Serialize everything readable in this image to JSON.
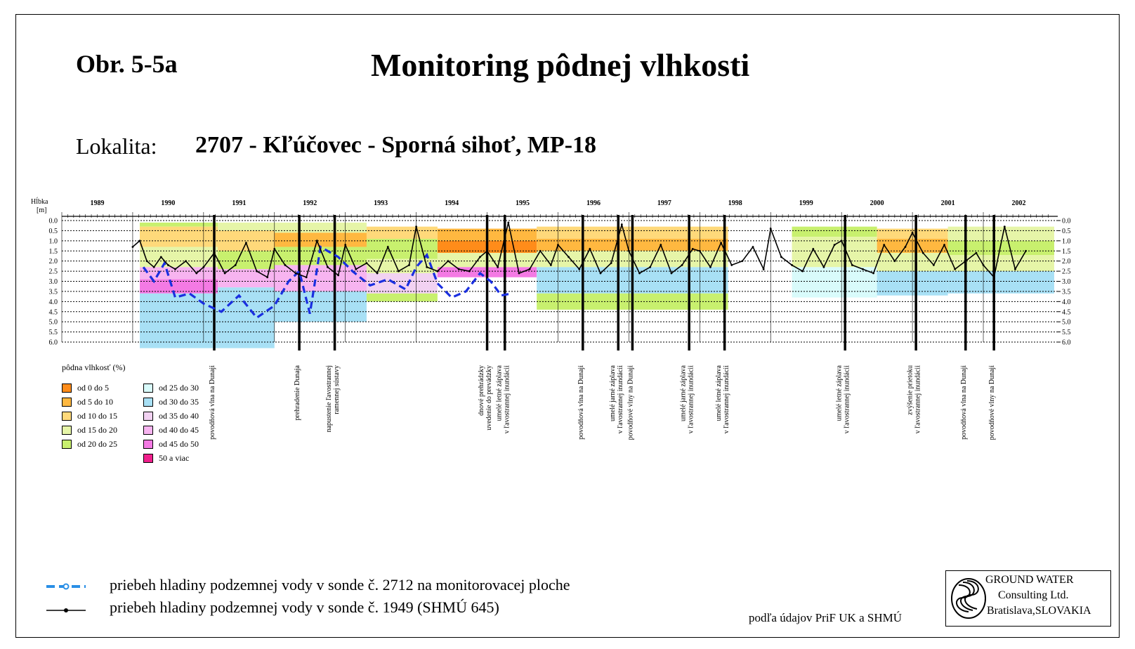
{
  "header": {
    "figure_label": "Obr. 5-5a",
    "title": "Monitoring pôdnej vlhkosti",
    "location_label": "Lokalita:",
    "location_value": "2707 - Kľúčovec - Sporná sihoť, MP-18"
  },
  "chart_data": {
    "type": "line",
    "ylabel": "Hĺbka [m]",
    "years": [
      "1989",
      "1990",
      "1991",
      "1992",
      "1993",
      "1994",
      "1995",
      "1996",
      "1997",
      "1998",
      "1999",
      "2000",
      "2001",
      "2002"
    ],
    "x_range": [
      1989.0,
      2003.05
    ],
    "depth_ticks": [
      "0.0",
      "0.5",
      "1.0",
      "1.5",
      "2.0",
      "2.5",
      "3.0",
      "3.5",
      "4.0",
      "4.5",
      "5.0",
      "5.5",
      "6.0"
    ],
    "ylim": [
      0,
      6
    ],
    "y_inverted": true,
    "grid": "dotted-horizontal",
    "colors": {
      "sonda_2712": "#1a2fe0",
      "sonda_1949": "#000000",
      "events": "#000000"
    },
    "series": [
      {
        "name": "priebeh hladiny podzemnej vody v sonde č. 2712 na monitorovacej ploche",
        "style": "dashed",
        "x": [
          1990.15,
          1990.3,
          1990.45,
          1990.6,
          1990.8,
          1991.0,
          1991.25,
          1991.5,
          1991.75,
          1992.0,
          1992.2,
          1992.35,
          1992.5,
          1992.65,
          1992.9,
          1993.1,
          1993.35,
          1993.6,
          1993.85,
          1994.0,
          1994.15,
          1994.3,
          1994.5,
          1994.7,
          1994.9,
          1995.05,
          1995.2,
          1995.35
        ],
        "y": [
          2.3,
          3.0,
          2.1,
          3.8,
          3.6,
          4.1,
          4.5,
          3.7,
          4.8,
          4.2,
          3.0,
          2.5,
          4.6,
          1.3,
          1.8,
          2.5,
          3.2,
          2.9,
          3.4,
          2.3,
          1.7,
          3.1,
          3.8,
          3.5,
          2.6,
          3.0,
          3.7,
          3.6
        ]
      },
      {
        "name": "priebeh hladiny podzemnej vody v sonde č. 1949 (SHMÚ 645)",
        "style": "solid",
        "x": [
          1990.0,
          1990.1,
          1990.2,
          1990.3,
          1990.4,
          1990.5,
          1990.6,
          1990.75,
          1990.9,
          1991.0,
          1991.15,
          1991.3,
          1991.45,
          1991.6,
          1991.75,
          1991.9,
          1992.0,
          1992.15,
          1992.3,
          1992.45,
          1992.6,
          1992.75,
          1992.9,
          1993.0,
          1993.15,
          1993.3,
          1993.45,
          1993.6,
          1993.75,
          1993.9,
          1994.0,
          1994.15,
          1994.3,
          1994.45,
          1994.6,
          1994.75,
          1994.9,
          1995.0,
          1995.15,
          1995.3,
          1995.45,
          1995.6,
          1995.75,
          1995.9,
          1996.0,
          1996.15,
          1996.3,
          1996.45,
          1996.6,
          1996.75,
          1996.9,
          1997.0,
          1997.15,
          1997.3,
          1997.45,
          1997.6,
          1997.75,
          1997.9,
          1998.0,
          1998.15,
          1998.3,
          1998.45,
          1998.6,
          1998.75,
          1998.9,
          1999.0,
          1999.15,
          1999.3,
          1999.45,
          1999.6,
          1999.75,
          1999.9,
          2000.0,
          2000.15,
          2000.3,
          2000.45,
          2000.6,
          2000.75,
          2000.9,
          2001.0,
          2001.15,
          2001.3,
          2001.45,
          2001.6,
          2001.75,
          2001.9,
          2002.0,
          2002.15,
          2002.3,
          2002.45,
          2002.6
        ],
        "y": [
          1.3,
          1.0,
          2.0,
          2.3,
          1.8,
          2.2,
          2.4,
          2.0,
          2.6,
          2.3,
          1.6,
          2.6,
          2.2,
          1.1,
          2.5,
          2.8,
          1.4,
          2.2,
          2.6,
          2.8,
          1.0,
          2.3,
          2.7,
          1.2,
          2.4,
          2.1,
          2.6,
          1.3,
          2.5,
          2.2,
          0.3,
          2.3,
          2.5,
          2.0,
          2.4,
          2.5,
          1.8,
          1.5,
          2.3,
          0.1,
          2.6,
          2.4,
          1.5,
          2.2,
          1.2,
          1.8,
          2.4,
          1.4,
          2.6,
          2.1,
          0.2,
          1.5,
          2.6,
          2.3,
          1.2,
          2.6,
          2.2,
          1.4,
          1.5,
          2.3,
          1.1,
          2.2,
          2.0,
          1.3,
          2.4,
          0.4,
          1.8,
          2.2,
          2.5,
          1.4,
          2.3,
          1.2,
          1.0,
          2.2,
          2.4,
          2.6,
          1.2,
          2.0,
          1.3,
          0.6,
          1.6,
          2.2,
          1.2,
          2.4,
          2.0,
          1.6,
          2.2,
          2.8,
          0.3,
          2.4,
          1.5
        ]
      }
    ],
    "moisture_classes": [
      {
        "label": "od 0 do 5",
        "color": "#ff8c1a"
      },
      {
        "label": "od 5 do 10",
        "color": "#ffb840"
      },
      {
        "label": "od 10 do 15",
        "color": "#ffd97a"
      },
      {
        "label": "od 15 do 20",
        "color": "#e6f5a8"
      },
      {
        "label": "od 20 do 25",
        "color": "#c8f06e"
      },
      {
        "label": "od 25 do 30",
        "color": "#d9fbfb"
      },
      {
        "label": "od 30 do 35",
        "color": "#a8e0f5"
      },
      {
        "label": "od 35 do 40",
        "color": "#f2d2f2"
      },
      {
        "label": "od 40 do 45",
        "color": "#f7b4f0"
      },
      {
        "label": "od 45 do 50",
        "color": "#f47ae4"
      },
      {
        "label": "50 a viac",
        "color": "#f01f8c"
      }
    ],
    "moisture_bands": [
      {
        "x0": 1990.1,
        "x1": 1991.2,
        "bands": [
          [
            0.1,
            0.3,
            4
          ],
          [
            0.3,
            1.3,
            2
          ],
          [
            1.3,
            2.3,
            3
          ],
          [
            2.3,
            2.9,
            8
          ],
          [
            2.9,
            3.6,
            9
          ],
          [
            3.6,
            6.3,
            6
          ]
        ]
      },
      {
        "x0": 1991.2,
        "x1": 1992.0,
        "bands": [
          [
            0.1,
            0.5,
            3
          ],
          [
            0.5,
            1.5,
            2
          ],
          [
            1.5,
            2.4,
            4
          ],
          [
            2.4,
            3.3,
            8
          ],
          [
            3.3,
            6.3,
            6
          ]
        ]
      },
      {
        "x0": 1992.0,
        "x1": 1993.3,
        "bands": [
          [
            0.1,
            0.6,
            3
          ],
          [
            0.6,
            1.3,
            1
          ],
          [
            1.3,
            2.2,
            4
          ],
          [
            2.2,
            3.5,
            8
          ],
          [
            3.5,
            5.0,
            6
          ]
        ]
      },
      {
        "x0": 1993.3,
        "x1": 1994.3,
        "bands": [
          [
            0.3,
            0.9,
            2
          ],
          [
            0.9,
            1.9,
            4
          ],
          [
            1.9,
            2.6,
            3
          ],
          [
            2.6,
            3.6,
            7
          ],
          [
            3.6,
            4.0,
            4
          ]
        ]
      },
      {
        "x0": 1994.3,
        "x1": 1995.7,
        "bands": [
          [
            0.4,
            1.0,
            1
          ],
          [
            1.0,
            1.6,
            0
          ],
          [
            1.6,
            2.3,
            3
          ],
          [
            2.3,
            2.8,
            9
          ]
        ]
      },
      {
        "x0": 1995.7,
        "x1": 1998.4,
        "bands": [
          [
            0.3,
            0.9,
            2
          ],
          [
            0.9,
            1.5,
            1
          ],
          [
            1.5,
            2.3,
            3
          ],
          [
            2.3,
            3.6,
            6
          ],
          [
            3.6,
            4.4,
            4
          ]
        ]
      },
      {
        "x0": 1999.3,
        "x1": 2000.5,
        "bands": [
          [
            0.3,
            0.8,
            4
          ],
          [
            0.8,
            1.4,
            3
          ],
          [
            1.4,
            2.3,
            3
          ],
          [
            2.3,
            3.8,
            5
          ]
        ]
      },
      {
        "x0": 2000.5,
        "x1": 2001.5,
        "bands": [
          [
            0.4,
            0.9,
            2
          ],
          [
            0.9,
            1.6,
            1
          ],
          [
            1.6,
            2.5,
            3
          ],
          [
            2.5,
            3.7,
            6
          ]
        ]
      },
      {
        "x0": 2001.5,
        "x1": 2003.0,
        "bands": [
          [
            0.3,
            1.0,
            3
          ],
          [
            1.0,
            1.7,
            4
          ],
          [
            1.7,
            2.5,
            3
          ],
          [
            2.5,
            3.6,
            6
          ]
        ]
      }
    ],
    "events": [
      {
        "x": 1991.15,
        "label": [
          "povodňová vlna na Dunaji"
        ]
      },
      {
        "x": 1992.35,
        "label": [
          "prehradenie Dunaja"
        ]
      },
      {
        "x": 1992.85,
        "label": [
          "napustenie ľavostrannej",
          "ramennej sústavy"
        ]
      },
      {
        "x": 1995.0,
        "label": [
          "dnové prehrádzky",
          "uvedenie do prevádzky"
        ]
      },
      {
        "x": 1995.25,
        "label": [
          "umelé letné záplava",
          "v ľavostrannej inundácii"
        ]
      },
      {
        "x": 1996.35,
        "label": [
          "povodňová vlna na Dunaji"
        ]
      },
      {
        "x": 1996.85,
        "label": [
          "umelé jarné záplava",
          "v ľavostrannej inundácii"
        ]
      },
      {
        "x": 1997.05,
        "label": [
          "povodňové vlny na Dunaji"
        ]
      },
      {
        "x": 1997.85,
        "label": [
          "umelé jarné záplava",
          "v ľavostrannej inundácii"
        ]
      },
      {
        "x": 1998.35,
        "label": [
          "umelé letné záplava",
          "v ľavostrannej inundácii"
        ]
      },
      {
        "x": 2000.05,
        "label": [
          "umelé letné záplava",
          "v ľavostrannej inundácii"
        ]
      },
      {
        "x": 2001.05,
        "label": [
          "zvýšenie prietoku",
          "v ľavostrannej inundácii"
        ]
      },
      {
        "x": 2001.75,
        "label": [
          "povodňová vlna na Dunaji"
        ]
      },
      {
        "x": 2002.15,
        "label": [
          "povodňové vlny na Dunaji"
        ]
      }
    ]
  },
  "legend": {
    "moisture_title": "pôdna vlhkosť (%)",
    "line_sonda_2712": "priebeh hladiny podzemnej vody v sonde č. 2712 na monitorovacej ploche",
    "line_sonda_1949": "priebeh hladiny podzemnej vody v sonde č. 1949 (SHMÚ 645)"
  },
  "footer": {
    "source_note": "podľa údajov PriF UK a SHMÚ",
    "logo_line1": "GROUND WATER",
    "logo_line2": "Consulting Ltd.",
    "logo_line3": "Bratislava,SLOVAKIA"
  }
}
